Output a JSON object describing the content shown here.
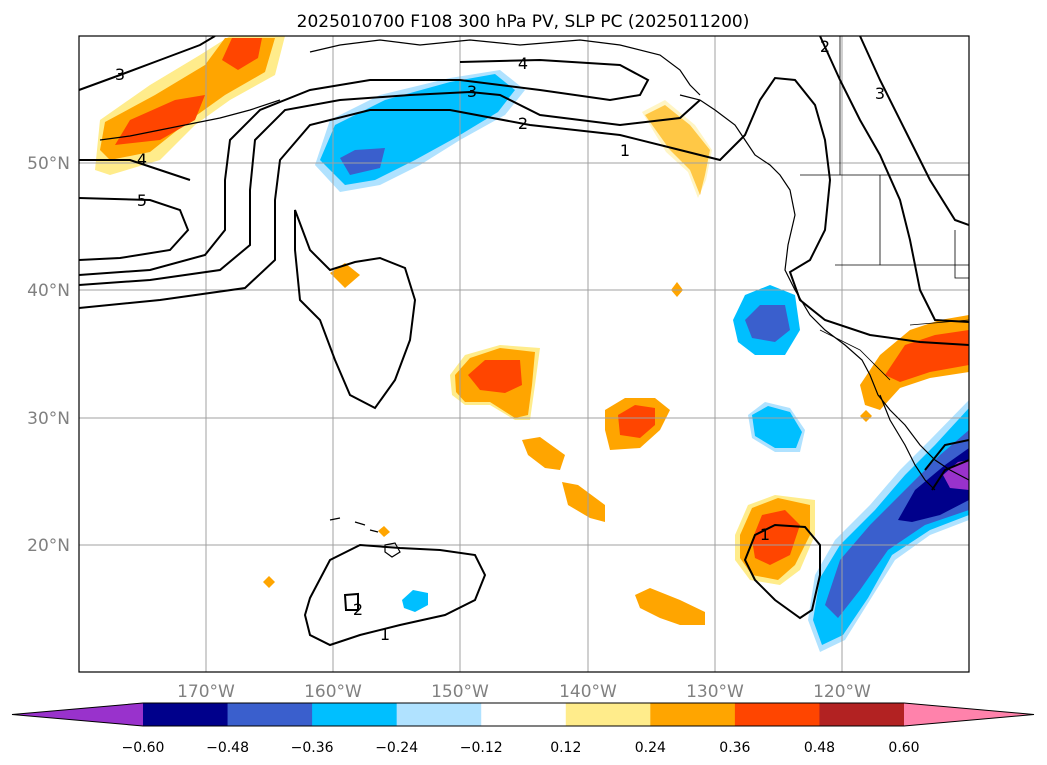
{
  "title": "2025010700 F108 300 hPa PV, SLP PC (2025011200)",
  "map": {
    "region": "North-East Pacific",
    "lon_range": [
      -180,
      -110
    ],
    "lat_range": [
      10,
      60
    ],
    "gridlines": true,
    "lon_ticks": [
      "170°W",
      "160°W",
      "150°W",
      "140°W",
      "130°W",
      "120°W"
    ],
    "lat_ticks": [
      "50°N",
      "40°N",
      "30°N",
      "20°N"
    ]
  },
  "colorbar": {
    "tick_labels": [
      "−0.60",
      "−0.48",
      "−0.36",
      "−0.24",
      "−0.12",
      "0.12",
      "0.24",
      "0.36",
      "0.48",
      "0.60"
    ],
    "colors": [
      "#9932cc",
      "#00008b",
      "#3a5fcd",
      "#00bfff",
      "#b0e2ff",
      "#ffffff",
      "#ffec8b",
      "#ffa500",
      "#ff4500",
      "#b22222",
      "#ff82ab"
    ],
    "extend": "both"
  },
  "contour_labels": [
    "3",
    "4",
    "5",
    "4",
    "3",
    "2",
    "1",
    "2",
    "3",
    "1",
    "1",
    "2"
  ],
  "colors": {
    "frame": "#000000",
    "grid": "#a0a0a0",
    "tick_text": "#808080"
  }
}
